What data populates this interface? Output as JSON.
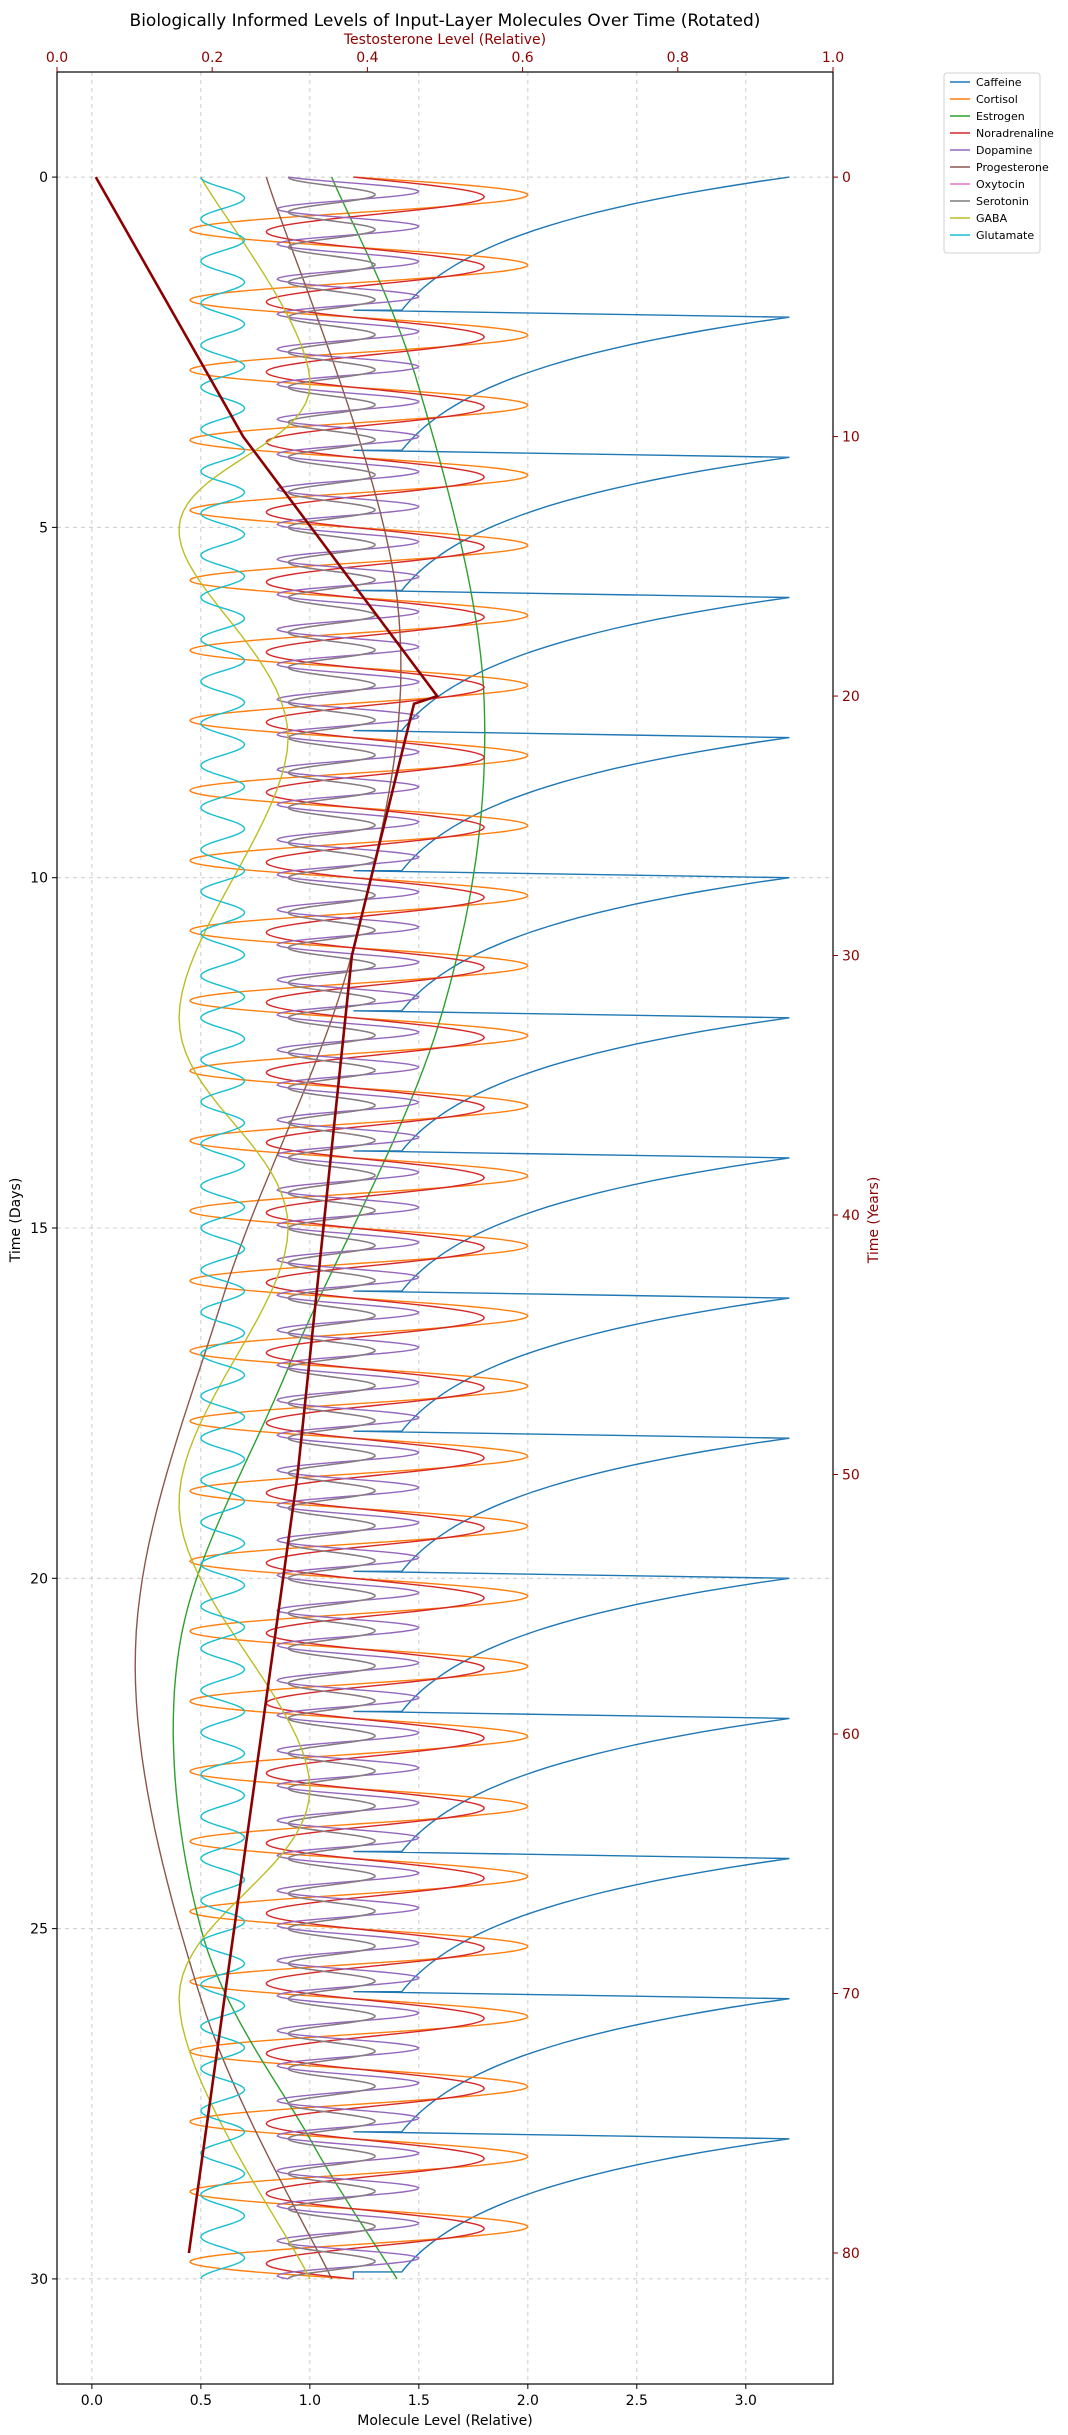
{
  "chart_data": {
    "type": "line",
    "title": "Biologically Informed Levels of Input-Layer Molecules Over Time (Rotated)",
    "orientation": "rotated: molecule level on horizontal axis, time increasing downward",
    "xlabel": "Molecule Level (Relative)",
    "ylabel": "Time (Days)",
    "top_xlabel": "Testosterone Level (Relative)",
    "right_ylabel": "Time (Years)",
    "xlim": [
      -0.16,
      3.4
    ],
    "ylim": [
      31.5,
      -1.5
    ],
    "top_xlim": [
      0.0,
      1.0
    ],
    "right_ylim": [
      85.05,
      -4.05
    ],
    "x_ticks": [
      "0.0",
      "0.5",
      "1.0",
      "1.5",
      "2.0",
      "2.5",
      "3.0"
    ],
    "y_ticks": [
      "0",
      "5",
      "10",
      "15",
      "20",
      "25",
      "30"
    ],
    "top_x_ticks": [
      "0.0",
      "0.2",
      "0.4",
      "0.6",
      "0.8",
      "1.0"
    ],
    "right_y_ticks": [
      "0",
      "10",
      "20",
      "30",
      "40",
      "50",
      "60",
      "70",
      "80"
    ],
    "grid": true,
    "legend_position": "outside upper right",
    "series_note": "Series below are sampled curves: x = molecule level, y = time in days",
    "series": [
      {
        "name": "Caffeine",
        "color": "#1f77b4",
        "shape": "sawtooth",
        "points": [
          [
            3.2,
            0
          ],
          [
            1.2,
            1.9
          ],
          [
            3.2,
            2
          ],
          [
            1.2,
            3.9
          ],
          [
            3.2,
            4
          ],
          [
            1.2,
            5.9
          ],
          [
            3.2,
            6
          ],
          [
            1.2,
            7.9
          ],
          [
            3.2,
            8
          ],
          [
            1.2,
            9.9
          ],
          [
            3.2,
            10
          ],
          [
            1.2,
            11.9
          ],
          [
            3.2,
            12
          ],
          [
            1.2,
            13.9
          ],
          [
            3.2,
            14
          ],
          [
            1.2,
            15.9
          ],
          [
            3.2,
            16
          ],
          [
            1.2,
            17.9
          ],
          [
            3.2,
            18
          ],
          [
            1.2,
            19.9
          ],
          [
            3.2,
            20
          ],
          [
            1.2,
            21.9
          ],
          [
            3.2,
            22
          ],
          [
            1.2,
            23.9
          ],
          [
            3.2,
            24
          ],
          [
            1.2,
            25.9
          ],
          [
            3.2,
            26
          ],
          [
            1.2,
            27.9
          ],
          [
            3.2,
            28
          ],
          [
            1.2,
            29.9
          ],
          [
            1.2,
            30
          ]
        ]
      },
      {
        "name": "Cortisol",
        "color": "#ff7f0e",
        "shape": "daily oscillation",
        "min": 0.45,
        "max": 2.0,
        "period_days": 1.0,
        "start": 1.2
      },
      {
        "name": "Estrogen",
        "color": "#2ca02c",
        "shape": "slow wave",
        "points": [
          [
            1.1,
            0
          ],
          [
            1.5,
            3
          ],
          [
            1.8,
            7.5
          ],
          [
            1.6,
            12
          ],
          [
            0.9,
            17
          ],
          [
            0.4,
            21
          ],
          [
            0.5,
            25
          ],
          [
            1.0,
            28
          ],
          [
            1.4,
            30
          ]
        ]
      },
      {
        "name": "Noradrenaline",
        "color": "#d62728",
        "shape": "daily oscillation",
        "min": 0.8,
        "max": 1.8,
        "period_days": 1.0,
        "start": 1.2
      },
      {
        "name": "Dopamine",
        "color": "#9467bd",
        "shape": "half-day oscillation",
        "min": 0.85,
        "max": 1.5,
        "period_days": 0.5,
        "start": 0.9
      },
      {
        "name": "Progesterone",
        "color": "#8c564b",
        "shape": "slow wave",
        "points": [
          [
            0.8,
            0
          ],
          [
            1.4,
            6
          ],
          [
            1.2,
            11
          ],
          [
            0.6,
            16
          ],
          [
            0.2,
            21
          ],
          [
            0.5,
            26
          ],
          [
            1.1,
            30
          ]
        ]
      },
      {
        "name": "Oxytocin",
        "color": "#e377c2",
        "shape": "oscillation",
        "min": 0.9,
        "max": 1.3,
        "period_days": 0.5,
        "start": 0.9
      },
      {
        "name": "Serotonin",
        "color": "#7f7f7f",
        "shape": "oscillation",
        "min": 0.9,
        "max": 1.3,
        "period_days": 0.5,
        "start": 0.9
      },
      {
        "name": "GABA",
        "color": "#bcbd22",
        "shape": "slow wave",
        "points": [
          [
            0.5,
            0
          ],
          [
            1.0,
            3
          ],
          [
            0.4,
            5
          ],
          [
            0.9,
            8
          ],
          [
            0.4,
            12
          ],
          [
            0.9,
            15
          ],
          [
            0.4,
            19
          ],
          [
            1.0,
            23
          ],
          [
            0.4,
            26
          ],
          [
            1.0,
            30
          ]
        ]
      },
      {
        "name": "Glutamate",
        "color": "#17becf",
        "shape": "oscillation",
        "min": 0.5,
        "max": 0.7,
        "period_days": 0.6,
        "start": 0.5
      }
    ],
    "testosterone": {
      "name": "Testosterone",
      "color": "#8b0000",
      "axes": "top x (Testosterone Level) vs right y (Time Years)",
      "points": [
        [
          0.05,
          0
        ],
        [
          0.24,
          10
        ],
        [
          0.49,
          20
        ],
        [
          0.46,
          20.3
        ],
        [
          0.38,
          30
        ],
        [
          0.31,
          50
        ],
        [
          0.17,
          80
        ]
      ]
    }
  }
}
